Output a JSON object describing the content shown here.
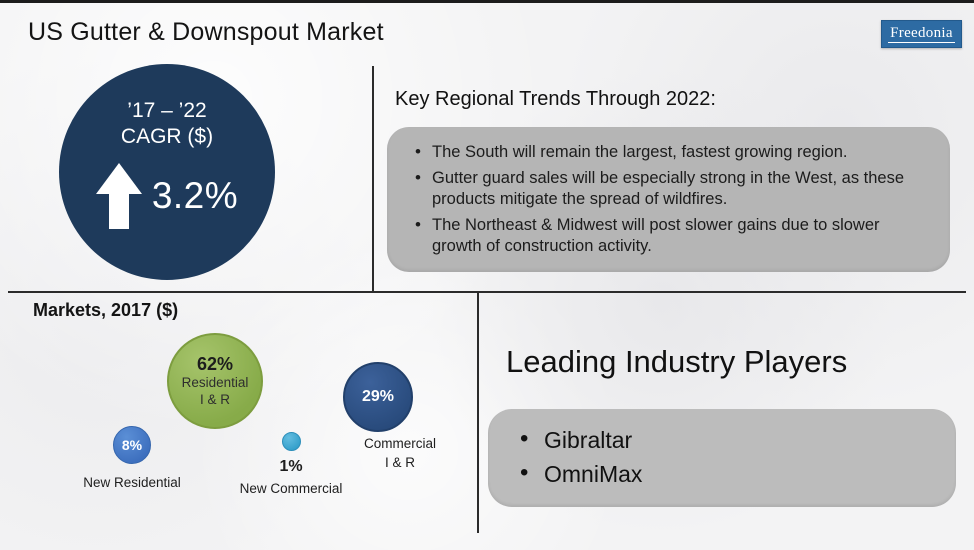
{
  "header": {
    "title": "US Gutter & Downspout Market",
    "logo_text": "Freedonia"
  },
  "cagr_circle": {
    "period": "’17 – ’22",
    "label": "CAGR ($)",
    "value": "3.2%"
  },
  "trends": {
    "heading": "Key Regional Trends Through 2022:",
    "bullets": [
      "The South will remain the largest, fastest growing region.",
      "Gutter guard sales will be especially strong in the West, as these products mitigate the spread of wildfires.",
      "The Northeast & Midwest will post slower gains due to slower growth of construction activity."
    ]
  },
  "markets": {
    "heading": "Markets, 2017 ($)",
    "bubbles": [
      {
        "id": "residential-ir",
        "value": "62%",
        "label_lines": [
          "Residential",
          "I & R"
        ],
        "color": "#8cb04f"
      },
      {
        "id": "new-residential",
        "value": "8%",
        "label": "New Residential",
        "color": "#4076c4"
      },
      {
        "id": "new-commercial",
        "value": "1%",
        "label": "New Commercial",
        "color": "#3da4cd"
      },
      {
        "id": "commercial-ir",
        "value": "29%",
        "label_lines": [
          "Commercial",
          "I & R"
        ],
        "color": "#2b4c7d"
      }
    ]
  },
  "players": {
    "heading": "Leading Industry Players",
    "items": [
      "Gibraltar",
      "OmniMax"
    ]
  },
  "colors": {
    "cagr_circle": "#1e3a5b",
    "gray_box": "#b5b5b5",
    "logo_blue": "#2d6ba3",
    "divider": "#2b2b2b"
  },
  "chart_data": [
    {
      "type": "pie",
      "render_style": "bubble",
      "title": "Markets, 2017 ($)",
      "categories": [
        "Residential I & R",
        "Commercial I & R",
        "New Residential",
        "New Commercial"
      ],
      "values": [
        62,
        29,
        8,
        1
      ],
      "unit": "percent of market value",
      "colors": [
        "#8cb04f",
        "#2b4c7d",
        "#4076c4",
        "#3da4cd"
      ],
      "labels_shown": [
        "62%",
        "29%",
        "8%",
        "1%"
      ]
    },
    {
      "type": "stat",
      "title": "’17 – ’22 CAGR ($)",
      "value": 3.2,
      "unit": "%",
      "direction": "up"
    }
  ]
}
